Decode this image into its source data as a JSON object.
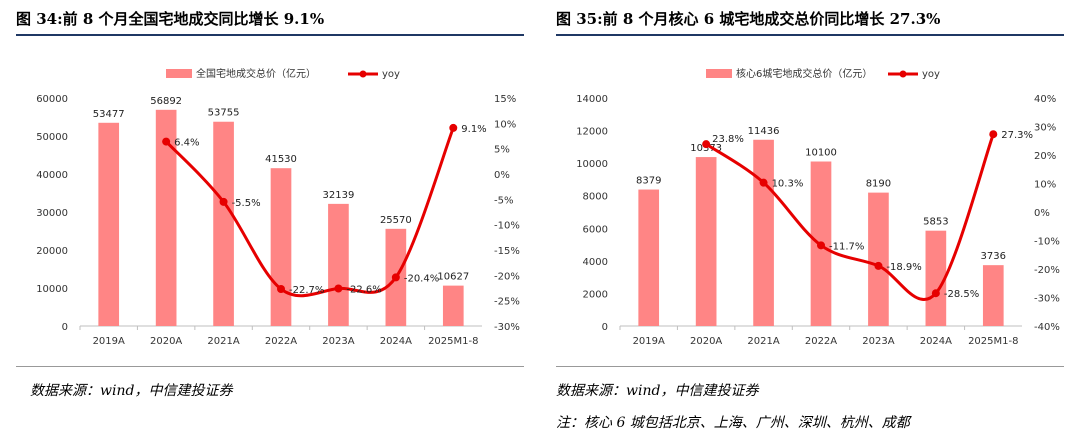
{
  "left": {
    "figure_title": "图 34:前 8 个月全国宅地成交同比增长 9.1%",
    "source": "数据来源：wind，中信建投证券"
  },
  "right": {
    "figure_title": "图 35:前 8 个月核心 6 城宅地成交总价同比增长 27.3%",
    "source": "数据来源：wind，中信建投证券",
    "note": "注：核心 6 城包括北京、上海、广州、深圳、杭州、成都"
  },
  "colors": {
    "bar": "#ff8585",
    "line": "#e60000",
    "rule": "#1f3864"
  },
  "chart_data": [
    {
      "type": "bar",
      "categories": [
        "2019A",
        "2020A",
        "2021A",
        "2022A",
        "2023A",
        "2024A",
        "2025M1-8"
      ],
      "series": [
        {
          "name": "全国宅地成交总价（亿元）",
          "type": "bar",
          "axis": "left",
          "values": [
            53477,
            56892,
            53755,
            41530,
            32139,
            25570,
            10627
          ],
          "labels": [
            "53477",
            "56892",
            "53755",
            "41530",
            "32139",
            "25570",
            "10627"
          ]
        },
        {
          "name": "yoy",
          "type": "line",
          "axis": "right",
          "values": [
            null,
            6.4,
            -5.5,
            -22.7,
            -22.6,
            -20.4,
            9.1
          ],
          "labels": [
            "",
            "6.4%",
            "-5.5%",
            "-22.7%",
            "-22.6%",
            "-20.4%",
            "9.1%"
          ]
        }
      ],
      "y_left": {
        "min": 0,
        "max": 60000,
        "ticks": [
          "0",
          "10000",
          "20000",
          "30000",
          "40000",
          "50000",
          "60000"
        ]
      },
      "y_right": {
        "min": -30,
        "max": 15,
        "ticks": [
          "-30%",
          "-25%",
          "-20%",
          "-15%",
          "-10%",
          "-5%",
          "0%",
          "5%",
          "10%",
          "15%"
        ]
      },
      "legend": "top-center",
      "grid": false
    },
    {
      "type": "bar",
      "categories": [
        "2019A",
        "2020A",
        "2021A",
        "2022A",
        "2023A",
        "2024A",
        "2025M1-8"
      ],
      "series": [
        {
          "name": "核心6城宅地成交总价（亿元）",
          "type": "bar",
          "axis": "left",
          "values": [
            8379,
            10373,
            11436,
            10100,
            8190,
            5853,
            3736
          ],
          "labels": [
            "8379",
            "10373",
            "11436",
            "10100",
            "8190",
            "5853",
            "3736"
          ]
        },
        {
          "name": "yoy",
          "type": "line",
          "axis": "right",
          "values": [
            null,
            23.8,
            10.3,
            -11.7,
            -18.9,
            -28.5,
            27.3
          ],
          "labels": [
            "",
            "23.8%",
            "10.3%",
            "-11.7%",
            "-18.9%",
            "-28.5%",
            "27.3%"
          ]
        }
      ],
      "y_left": {
        "min": 0,
        "max": 14000,
        "ticks": [
          "0",
          "2000",
          "4000",
          "6000",
          "8000",
          "10000",
          "12000",
          "14000"
        ]
      },
      "y_right": {
        "min": -40,
        "max": 40,
        "ticks": [
          "-40%",
          "-30%",
          "-20%",
          "-10%",
          "0%",
          "10%",
          "20%",
          "30%",
          "40%"
        ]
      },
      "legend": "top-center",
      "grid": false
    }
  ]
}
